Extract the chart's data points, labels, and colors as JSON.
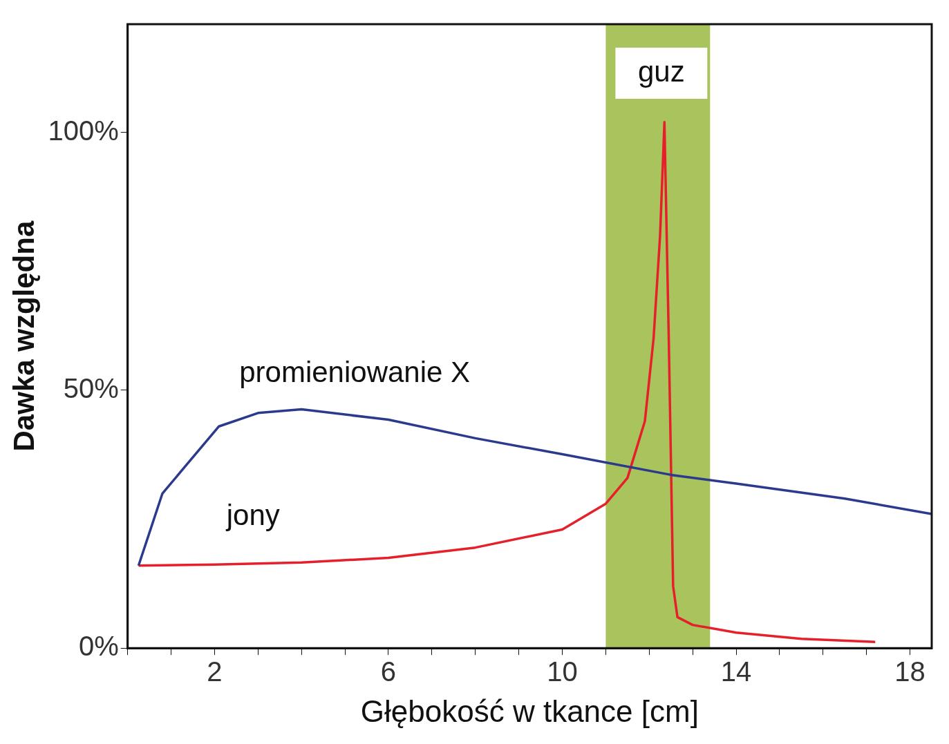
{
  "chart_data": {
    "type": "line",
    "xlabel": "Głębokość w tkance [cm]",
    "ylabel": "Dawka względna",
    "xlim": [
      0,
      18.5
    ],
    "ylim": [
      0,
      121
    ],
    "xticks": [
      {
        "value": 0,
        "label": null
      },
      {
        "value": 1,
        "label": null
      },
      2,
      {
        "value": 3,
        "label": null
      },
      {
        "value": 4,
        "label": null
      },
      {
        "value": 5,
        "label": null
      },
      6,
      {
        "value": 7,
        "label": null
      },
      {
        "value": 8,
        "label": null
      },
      {
        "value": 9,
        "label": null
      },
      10,
      {
        "value": 11,
        "label": null
      },
      {
        "value": 12,
        "label": null
      },
      {
        "value": 13,
        "label": null
      },
      14,
      {
        "value": 15,
        "label": null
      },
      {
        "value": 16,
        "label": null
      },
      {
        "value": 17,
        "label": null
      },
      18
    ],
    "yticks": [
      {
        "value": 0,
        "label": "0%"
      },
      {
        "value": 50,
        "label": "50%"
      },
      {
        "value": 100,
        "label": "100%"
      }
    ],
    "grid": false,
    "legend": false,
    "marker": "none",
    "line_style": "solid",
    "bands": [
      {
        "axis": "x",
        "from": 11,
        "to": 13.4,
        "label": "guz",
        "color": "#a9c45c"
      }
    ],
    "series": [
      {
        "name": "promieniowanie X",
        "color": "#2b3a8c",
        "x": [
          0.25,
          0.8,
          1.3,
          2.1,
          3,
          4,
          6,
          8,
          10,
          12.5,
          14,
          16.5,
          18.5
        ],
        "values": [
          16,
          30,
          35,
          43,
          45.6,
          46.3,
          44.3,
          40.7,
          37.6,
          33.6,
          31.9,
          29,
          26
        ]
      },
      {
        "name": "jony",
        "color": "#e5202a",
        "x": [
          0.25,
          2,
          4,
          6,
          8,
          10,
          11,
          11.5,
          11.9,
          12.1,
          12.25,
          12.35,
          12.45,
          12.55,
          12.65,
          13,
          14,
          15.5,
          17.2
        ],
        "values": [
          16,
          16.2,
          16.6,
          17.5,
          19.5,
          23,
          28,
          33,
          44,
          60,
          80,
          102,
          60,
          12,
          6,
          4.5,
          3,
          1.8,
          1.2
        ]
      }
    ]
  }
}
